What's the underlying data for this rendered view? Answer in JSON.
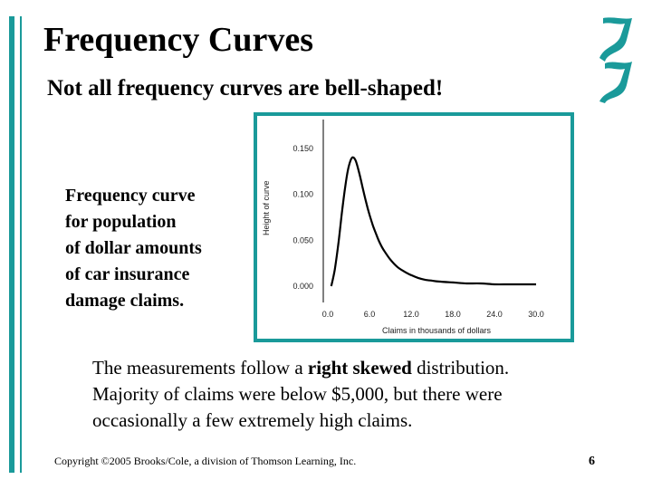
{
  "slide": {
    "title": "Frequency Curves",
    "subtitle": "Not all frequency curves are bell-shaped!",
    "caption_lines": [
      "Frequency curve",
      "for population",
      "of dollar amounts",
      "of car insurance",
      "damage claims."
    ],
    "description": {
      "line1_pre": "The measurements follow a ",
      "line1_bold": "right skewed",
      "line1_post": " distribution.",
      "line2": "Majority of claims were below $5,000, but there were",
      "line3": "occasionally a few extremely high claims."
    },
    "copyright": "Copyright ©2005 Brooks/Cole, a division of Thomson Learning, Inc.",
    "page_number": "6",
    "accent_color": "#1a9a9a",
    "decoration_icon": "ribbon-icon"
  },
  "chart_data": {
    "type": "line",
    "title": "",
    "xlabel": "Claims in thousands of dollars",
    "ylabel": "Height of curve",
    "xlim": [
      0,
      30
    ],
    "ylim": [
      0,
      0.15
    ],
    "xticks": [
      "0.0",
      "6.0",
      "12.0",
      "18.0",
      "24.0",
      "30.0"
    ],
    "yticks": [
      "0.000",
      "0.050",
      "0.100",
      "0.150"
    ],
    "grid": false,
    "series": [
      {
        "x": [
          0.5,
          1.0,
          1.5,
          2.0,
          2.5,
          3.0,
          3.5,
          4.0,
          4.5,
          5.0,
          5.5,
          6.0,
          6.5,
          7.0,
          7.5,
          8.0,
          9.0,
          10.0,
          11.0,
          12.0,
          13.0,
          14.0,
          15.0,
          16.0,
          18.0,
          20.0,
          22.0,
          24.0,
          26.0,
          28.0,
          30.0
        ],
        "y": [
          0.0,
          0.018,
          0.045,
          0.078,
          0.108,
          0.13,
          0.14,
          0.137,
          0.124,
          0.108,
          0.092,
          0.078,
          0.066,
          0.056,
          0.047,
          0.04,
          0.029,
          0.021,
          0.016,
          0.012,
          0.009,
          0.007,
          0.006,
          0.005,
          0.004,
          0.003,
          0.003,
          0.002,
          0.002,
          0.002,
          0.002
        ]
      }
    ]
  }
}
